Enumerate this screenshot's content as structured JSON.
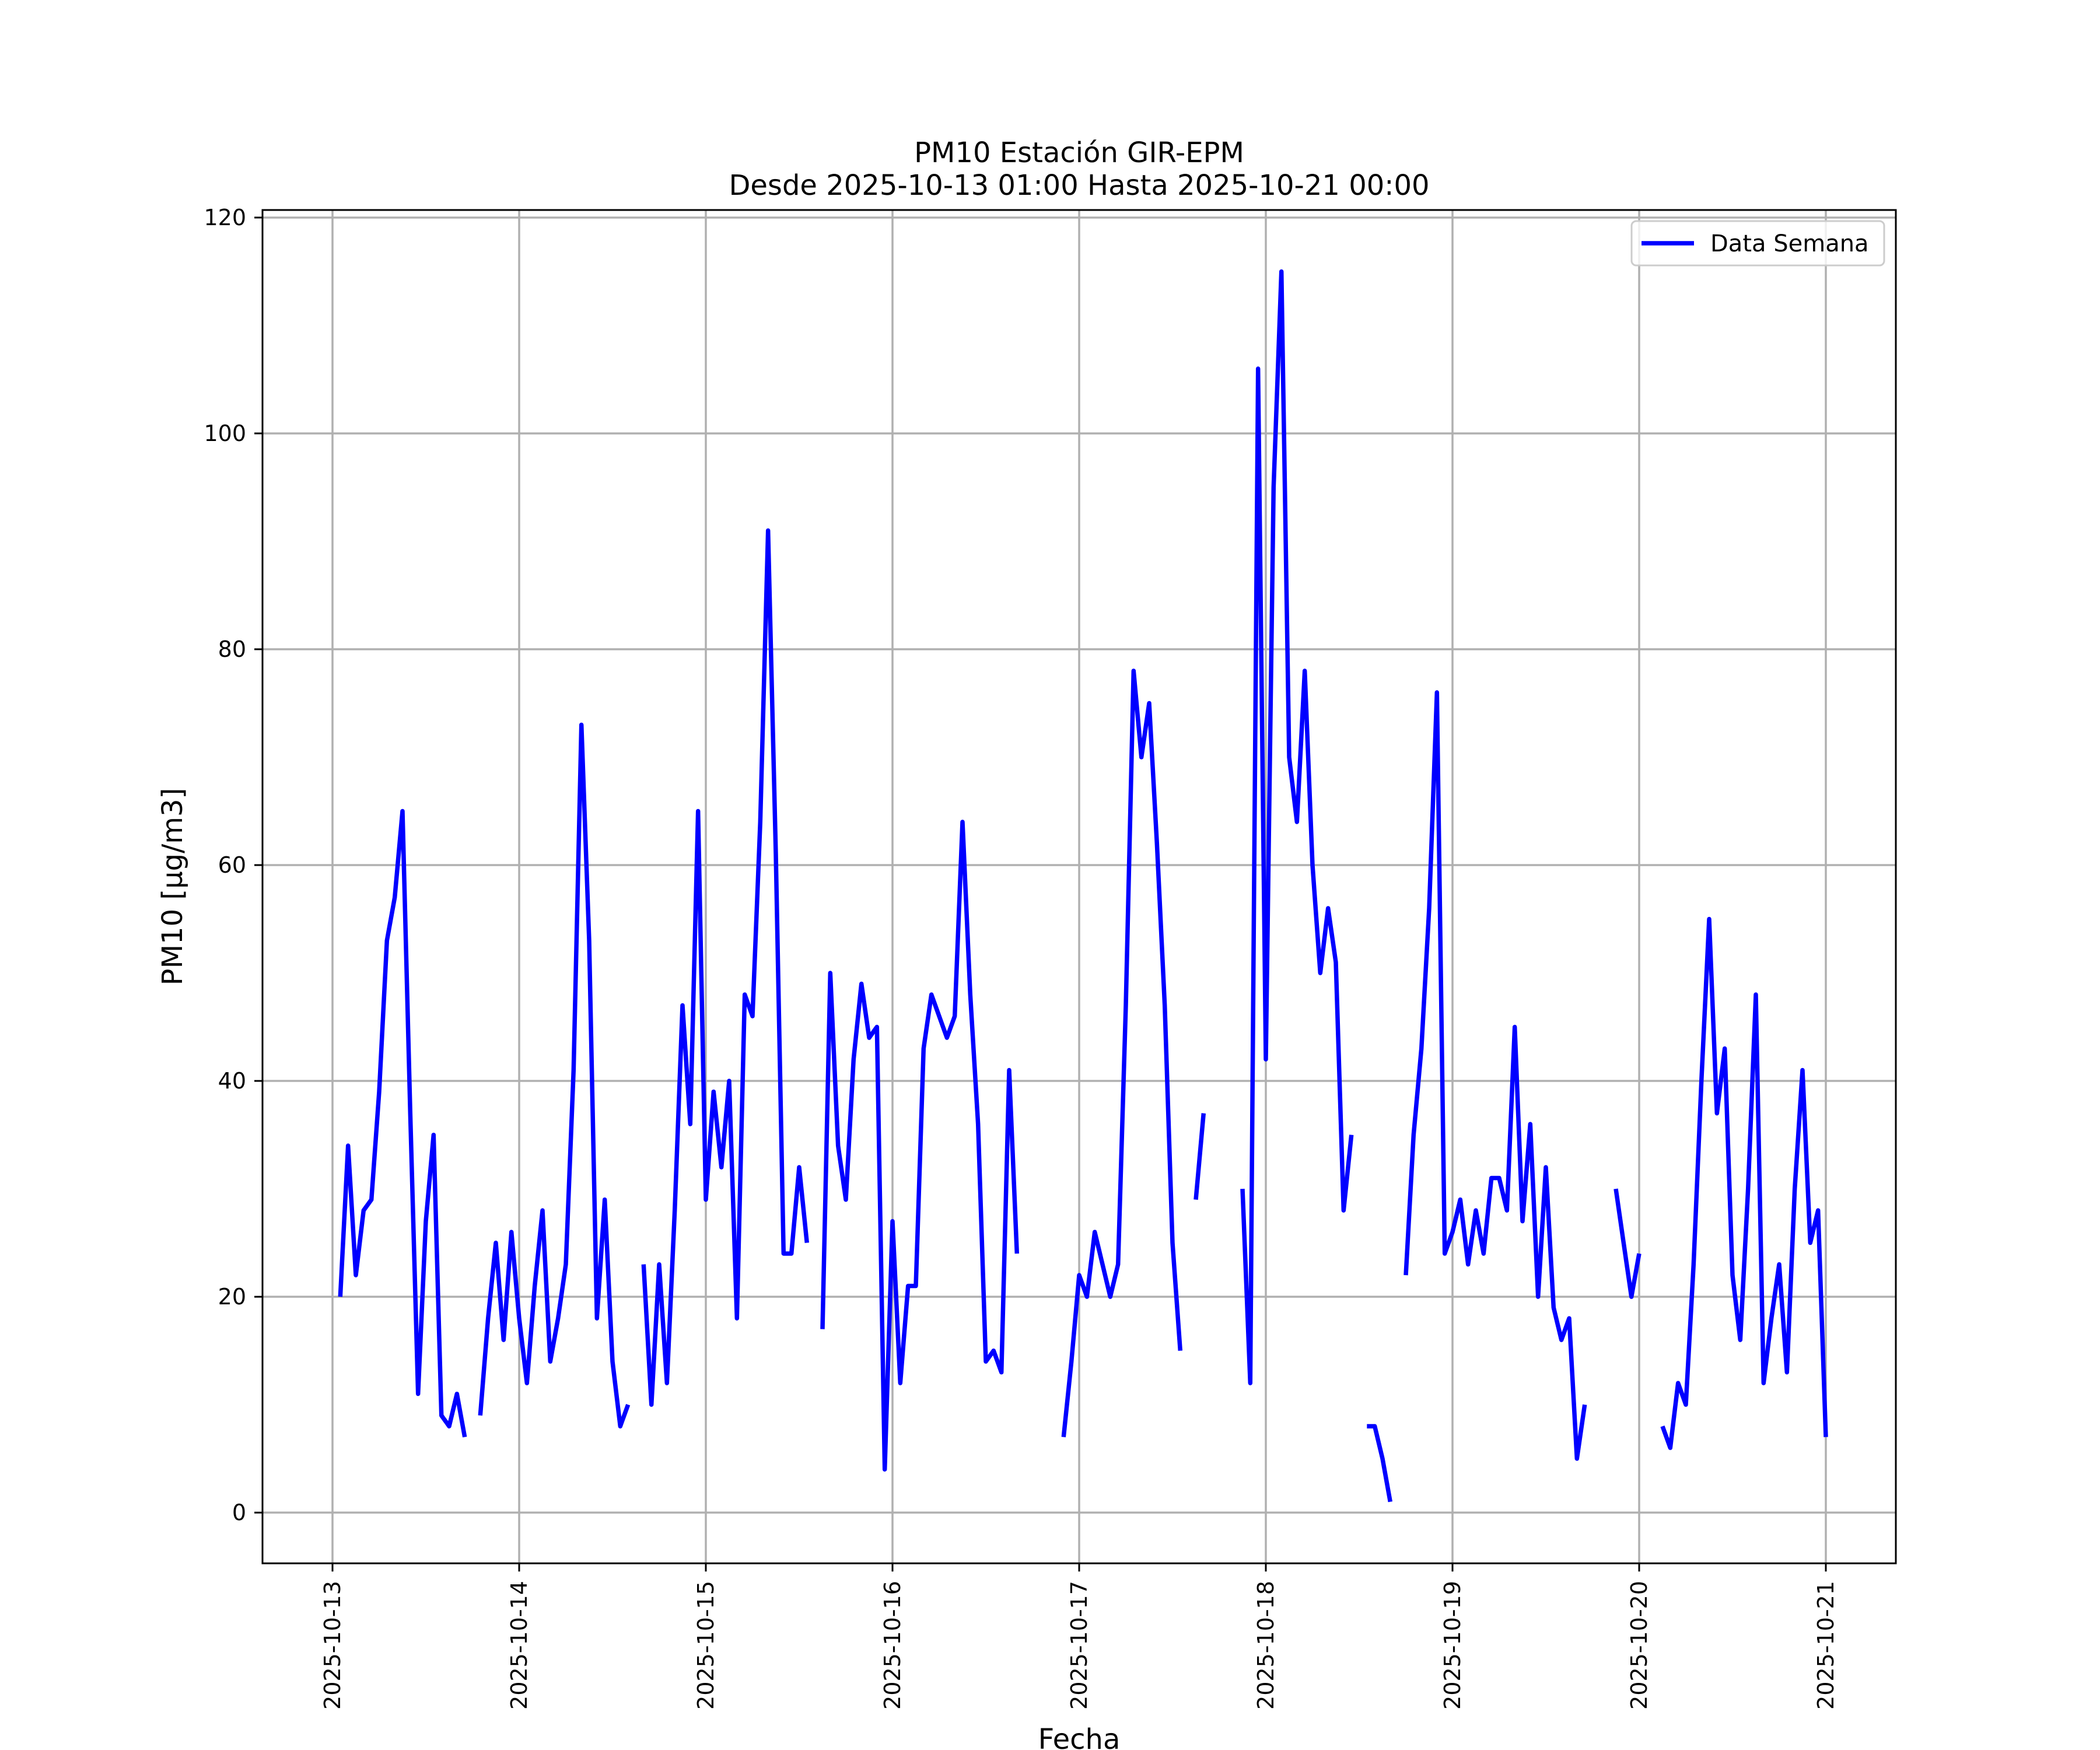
{
  "chart_data": {
    "type": "line",
    "title": "PM10 Estación GIR-EPM",
    "subtitle": "Desde 2025-10-13 01:00 Hasta 2025-10-21 00:00",
    "xlabel": "Fecha",
    "ylabel": "PM10 [μg/m3]",
    "x_type": "date",
    "xlim": [
      "2025-10-12 15:00",
      "2025-10-21 09:00"
    ],
    "ylim": [
      -4.7,
      120.7
    ],
    "grid": true,
    "legend_position": "top-right",
    "x_ticks": [
      "2025-10-13",
      "2025-10-14",
      "2025-10-15",
      "2025-10-16",
      "2025-10-17",
      "2025-10-18",
      "2025-10-19",
      "2025-10-20",
      "2025-10-21"
    ],
    "y_ticks": [
      0,
      20,
      40,
      60,
      80,
      100,
      120
    ],
    "series": [
      {
        "name": "Data Semana",
        "color": "#0000ff",
        "segments": [
          {
            "x": [
              "2025-10-13 01:00",
              "2025-10-13 02:00",
              "2025-10-13 03:00",
              "2025-10-13 04:00",
              "2025-10-13 05:00",
              "2025-10-13 06:00",
              "2025-10-13 07:00",
              "2025-10-13 08:00",
              "2025-10-13 09:00",
              "2025-10-13 10:00",
              "2025-10-13 11:00",
              "2025-10-13 12:00",
              "2025-10-13 13:00",
              "2025-10-13 14:00",
              "2025-10-13 15:00",
              "2025-10-13 16:00",
              "2025-10-13 17:00",
              "2025-10-13 18:00"
            ],
            "y": [
              20,
              34,
              22,
              28,
              29,
              39,
              53,
              57,
              65,
              37,
              11,
              27,
              35,
              9,
              8,
              11,
              7,
              null
            ]
          },
          {
            "x": [
              "2025-10-13 19:00",
              "2025-10-13 20:00",
              "2025-10-13 21:00",
              "2025-10-13 22:00",
              "2025-10-13 23:00",
              "2025-10-14 00:00",
              "2025-10-14 01:00",
              "2025-10-14 02:00",
              "2025-10-14 03:00",
              "2025-10-14 04:00",
              "2025-10-14 05:00",
              "2025-10-14 06:00",
              "2025-10-14 07:00",
              "2025-10-14 08:00",
              "2025-10-14 09:00",
              "2025-10-14 10:00",
              "2025-10-14 11:00",
              "2025-10-14 12:00",
              "2025-10-14 13:00",
              "2025-10-14 14:00"
            ],
            "y": [
              9,
              18,
              25,
              16,
              26,
              18,
              12,
              21,
              28,
              14,
              18,
              23,
              41,
              73,
              53,
              18,
              29,
              14,
              8,
              10
            ]
          },
          {
            "x": [
              "2025-10-14 16:00",
              "2025-10-14 17:00",
              "2025-10-14 18:00",
              "2025-10-14 19:00",
              "2025-10-14 20:00",
              "2025-10-14 21:00",
              "2025-10-14 22:00",
              "2025-10-14 23:00",
              "2025-10-15 00:00",
              "2025-10-15 01:00",
              "2025-10-15 02:00",
              "2025-10-15 03:00",
              "2025-10-15 04:00",
              "2025-10-15 05:00",
              "2025-10-15 06:00",
              "2025-10-15 07:00",
              "2025-10-15 08:00",
              "2025-10-15 09:00",
              "2025-10-15 10:00",
              "2025-10-15 11:00",
              "2025-10-15 12:00",
              "2025-10-15 13:00",
              "2025-10-15 14:00"
            ],
            "y": [
              23,
              10,
              23,
              12,
              28,
              47,
              36,
              65,
              29,
              39,
              32,
              40,
              18,
              48,
              46,
              64,
              91,
              61,
              24,
              24,
              32,
              25,
              null
            ]
          },
          {
            "x": [
              "2025-10-15 15:00",
              "2025-10-15 16:00",
              "2025-10-15 17:00",
              "2025-10-15 18:00",
              "2025-10-15 19:00",
              "2025-10-15 20:00",
              "2025-10-15 21:00",
              "2025-10-15 22:00",
              "2025-10-15 23:00",
              "2025-10-16 00:00",
              "2025-10-16 01:00",
              "2025-10-16 02:00",
              "2025-10-16 03:00",
              "2025-10-16 04:00",
              "2025-10-16 05:00",
              "2025-10-16 06:00",
              "2025-10-16 07:00",
              "2025-10-16 08:00",
              "2025-10-16 09:00",
              "2025-10-16 10:00",
              "2025-10-16 11:00",
              "2025-10-16 12:00",
              "2025-10-16 13:00",
              "2025-10-16 14:00",
              "2025-10-16 15:00",
              "2025-10-16 16:00"
            ],
            "y": [
              17,
              50,
              34,
              29,
              42,
              49,
              44,
              45,
              4,
              27,
              12,
              21,
              21,
              43,
              48,
              46,
              44,
              46,
              64,
              48,
              36,
              14,
              15,
              13,
              41,
              24
            ]
          },
          {
            "x": [
              "2025-10-16 22:00",
              "2025-10-16 23:00",
              "2025-10-17 00:00",
              "2025-10-17 01:00",
              "2025-10-17 02:00",
              "2025-10-17 03:00",
              "2025-10-17 04:00",
              "2025-10-17 05:00",
              "2025-10-17 06:00",
              "2025-10-17 07:00",
              "2025-10-17 08:00",
              "2025-10-17 09:00",
              "2025-10-17 10:00",
              "2025-10-17 11:00",
              "2025-10-17 12:00",
              "2025-10-17 13:00"
            ],
            "y": [
              7,
              14,
              22,
              20,
              26,
              23,
              20,
              23,
              47,
              78,
              70,
              75,
              62,
              47,
              25,
              15
            ]
          },
          {
            "x": [
              "2025-10-17 15:00",
              "2025-10-17 16:00"
            ],
            "y": [
              29,
              37
            ]
          },
          {
            "x": [
              "2025-10-17 21:00",
              "2025-10-17 22:00",
              "2025-10-17 23:00",
              "2025-10-18 00:00",
              "2025-10-18 01:00",
              "2025-10-18 02:00",
              "2025-10-18 03:00",
              "2025-10-18 04:00",
              "2025-10-18 05:00",
              "2025-10-18 06:00",
              "2025-10-18 07:00",
              "2025-10-18 08:00",
              "2025-10-18 09:00",
              "2025-10-18 10:00",
              "2025-10-18 11:00"
            ],
            "y": [
              30,
              12,
              106,
              42,
              95,
              115,
              70,
              64,
              78,
              60,
              50,
              56,
              51,
              28,
              35
            ]
          },
          {
            "x": [
              "2025-10-18 13:00",
              "2025-10-18 14:00",
              "2025-10-18 15:00",
              "2025-10-18 16:00"
            ],
            "y": [
              8,
              8,
              5,
              1
            ]
          },
          {
            "x": [
              "2025-10-18 18:00",
              "2025-10-18 19:00",
              "2025-10-18 20:00",
              "2025-10-18 21:00",
              "2025-10-18 22:00",
              "2025-10-18 23:00",
              "2025-10-19 00:00",
              "2025-10-19 01:00",
              "2025-10-19 02:00",
              "2025-10-19 03:00",
              "2025-10-19 04:00",
              "2025-10-19 05:00",
              "2025-10-19 06:00",
              "2025-10-19 07:00",
              "2025-10-19 08:00",
              "2025-10-19 09:00",
              "2025-10-19 10:00",
              "2025-10-19 11:00",
              "2025-10-19 12:00",
              "2025-10-19 13:00",
              "2025-10-19 14:00",
              "2025-10-19 15:00",
              "2025-10-19 16:00",
              "2025-10-19 17:00"
            ],
            "y": [
              22,
              35,
              43,
              56,
              76,
              24,
              26,
              29,
              23,
              28,
              24,
              31,
              31,
              28,
              45,
              27,
              36,
              20,
              32,
              19,
              16,
              18,
              5,
              10
            ]
          },
          {
            "x": [
              "2025-10-19 21:00",
              "2025-10-19 22:00",
              "2025-10-19 23:00",
              "2025-10-20 00:00"
            ],
            "y": [
              30,
              25,
              20,
              24
            ]
          },
          {
            "x": [
              "2025-10-20 03:00",
              "2025-10-20 04:00",
              "2025-10-20 05:00",
              "2025-10-20 06:00",
              "2025-10-20 07:00",
              "2025-10-20 08:00",
              "2025-10-20 09:00",
              "2025-10-20 10:00",
              "2025-10-20 11:00",
              "2025-10-20 12:00",
              "2025-10-20 13:00",
              "2025-10-20 14:00",
              "2025-10-20 15:00",
              "2025-10-20 16:00",
              "2025-10-20 17:00",
              "2025-10-20 18:00",
              "2025-10-20 19:00",
              "2025-10-20 20:00",
              "2025-10-20 21:00",
              "2025-10-20 22:00",
              "2025-10-20 23:00",
              "2025-10-21 00:00"
            ],
            "y": [
              8,
              6,
              12,
              10,
              23,
              40,
              55,
              37,
              43,
              22,
              16,
              30,
              48,
              12,
              18,
              23,
              13,
              30,
              41,
              25,
              28,
              7
            ]
          }
        ]
      }
    ]
  }
}
